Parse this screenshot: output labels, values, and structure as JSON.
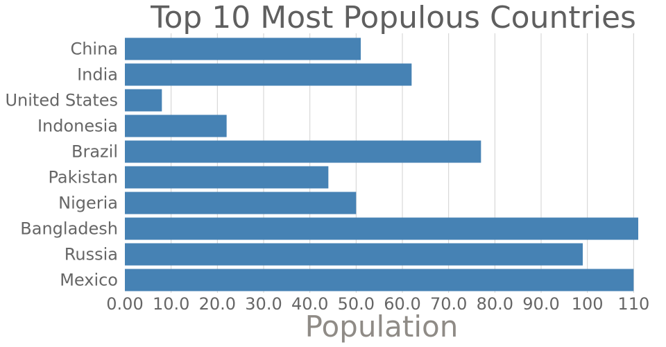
{
  "chart_data": {
    "type": "bar",
    "orientation": "horizontal",
    "title": "Top 10 Most Populous Countries",
    "xlabel": "Population",
    "ylabel": "",
    "categories": [
      "China",
      "India",
      "United States",
      "Indonesia",
      "Brazil",
      "Pakistan",
      "Nigeria",
      "Bangladesh",
      "Russia",
      "Mexico"
    ],
    "values": [
      51,
      62,
      8,
      22,
      77,
      44,
      50,
      111,
      99,
      110
    ],
    "xlim": [
      0,
      111
    ],
    "ticks": [
      0,
      10,
      20,
      30,
      40,
      50,
      60,
      70,
      80,
      90,
      100,
      110
    ],
    "tick_labels": [
      "0.00",
      "10.0",
      "20.0",
      "30.0",
      "40.0",
      "50.0",
      "60.0",
      "70.0",
      "80.0",
      "90.0",
      "100",
      "110"
    ],
    "grid": true,
    "colors": {
      "bar": "#4682b4",
      "grid": "#d0d0d0",
      "title": "#5f5f5f",
      "label": "#666666",
      "xlabel": "#8f8b86"
    }
  }
}
